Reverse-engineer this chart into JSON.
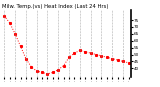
{
  "title": "Milw. Temp.(vs) Heat Index (Last 24 Hrs)",
  "line_color": "#ff0000",
  "background_color": "#ffffff",
  "grid_color": "#888888",
  "y_values": [
    78,
    73,
    65,
    56,
    47,
    41,
    38,
    37,
    36,
    37,
    39,
    42,
    48,
    51,
    53,
    52,
    51,
    50,
    49,
    48,
    47,
    46,
    45,
    44
  ],
  "ylim": [
    34,
    82
  ],
  "ytick_positions": [
    40,
    45,
    50,
    55,
    60,
    65,
    70,
    75
  ],
  "ytick_labels": [
    "40",
    "45",
    "50",
    "55",
    "60",
    "65",
    "70",
    "75"
  ],
  "n_points": 24,
  "title_fontsize": 3.8,
  "tick_fontsize": 3.0,
  "line_width": 0.7,
  "marker_size": 1.2,
  "figsize": [
    1.6,
    0.87
  ],
  "dpi": 100
}
